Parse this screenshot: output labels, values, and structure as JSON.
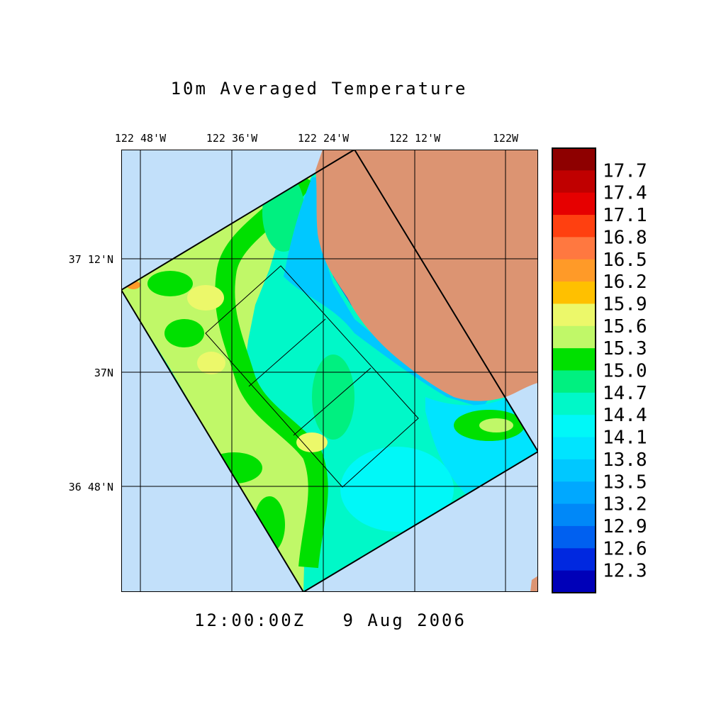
{
  "title": "10m Averaged Temperature",
  "timestamp": "12:00:00Z   9 Aug 2006",
  "lon_labels": [
    "122 48'W",
    "122 36'W",
    "122 24'W",
    "122 12'W",
    "122W"
  ],
  "lat_labels": [
    "37 12'N",
    "37N",
    "36 48'N"
  ],
  "colorbar": {
    "labels": [
      "17.7",
      "17.4",
      "17.1",
      "16.8",
      "16.5",
      "16.2",
      "15.9",
      "15.6",
      "15.3",
      "15.0",
      "14.7",
      "14.4",
      "14.1",
      "13.8",
      "13.5",
      "13.2",
      "12.9",
      "12.6",
      "12.3"
    ],
    "colors": [
      "#8e0000",
      "#c00000",
      "#e60000",
      "#ff4010",
      "#ff7840",
      "#ff9a28",
      "#ffc000",
      "#ecf86a",
      "#c0f868",
      "#00e000",
      "#00f080",
      "#00f8c8",
      "#00f8f8",
      "#00e4ff",
      "#00c8ff",
      "#00a8ff",
      "#0088f8",
      "#0060f0",
      "#0028e0",
      "#0000b8"
    ]
  },
  "colors": {
    "ocean": "#c2e0fa",
    "land": "#dc9472",
    "grid": "#000000"
  }
}
